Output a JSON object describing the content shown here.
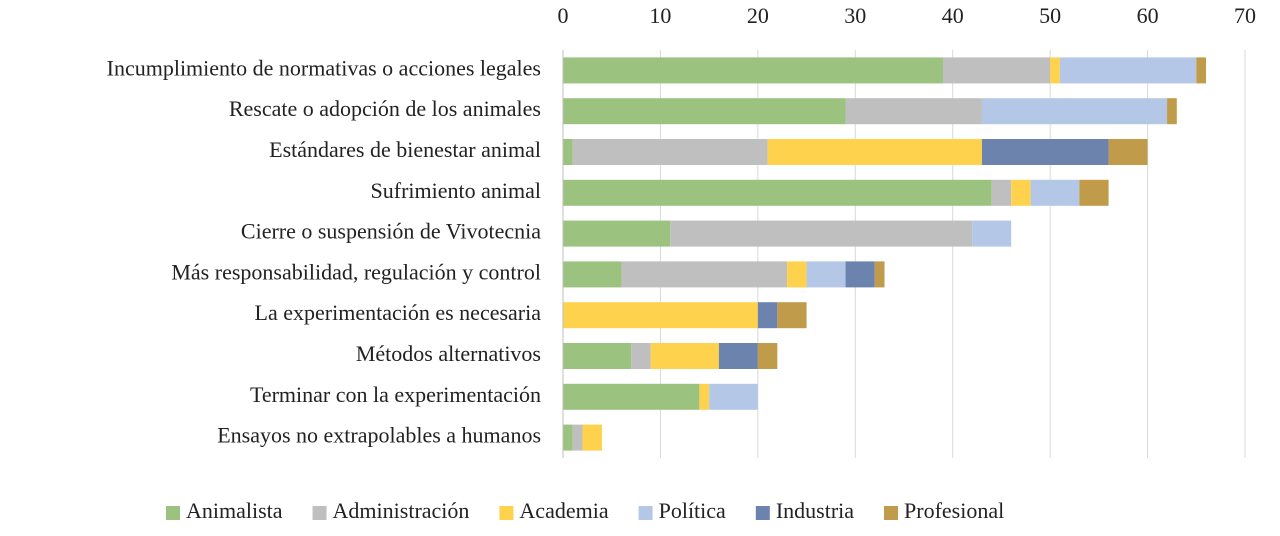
{
  "chart_data": {
    "type": "stacked-bar-horizontal",
    "categories": [
      "Incumplimiento de normativas o acciones legales",
      "Rescate o adopción de los animales",
      "Estándares de bienestar animal",
      "Sufrimiento animal",
      "Cierre o suspensión de Vivotecnia",
      "Más responsabilidad, regulación y control",
      "La experimentación es necesaria",
      "Métodos alternativos",
      "Terminar con la experimentación",
      "Ensayos no extrapolables a humanos"
    ],
    "series": [
      {
        "name": "Animalista",
        "color": "#9bc37f",
        "values": [
          39,
          29,
          1,
          44,
          11,
          6,
          0,
          7,
          14,
          1
        ]
      },
      {
        "name": "Administración",
        "color": "#bfbfbf",
        "values": [
          11,
          14,
          20,
          2,
          31,
          17,
          0,
          2,
          0,
          1
        ]
      },
      {
        "name": "Academia",
        "color": "#ffd24d",
        "values": [
          1,
          0,
          22,
          2,
          0,
          2,
          20,
          7,
          1,
          2
        ]
      },
      {
        "name": "Política",
        "color": "#b4c7e7",
        "values": [
          14,
          19,
          0,
          5,
          4,
          4,
          0,
          0,
          5,
          0
        ]
      },
      {
        "name": "Industria",
        "color": "#6c84ad",
        "values": [
          0,
          0,
          13,
          0,
          0,
          3,
          2,
          4,
          0,
          0
        ]
      },
      {
        "name": "Profesional",
        "color": "#bf9b4a",
        "values": [
          1,
          1,
          4,
          3,
          0,
          1,
          3,
          2,
          0,
          0
        ]
      }
    ],
    "xlim": [
      0,
      70
    ],
    "xticks": [
      0,
      10,
      20,
      30,
      40,
      50,
      60,
      70
    ],
    "grid": true,
    "legend": "bottom"
  }
}
